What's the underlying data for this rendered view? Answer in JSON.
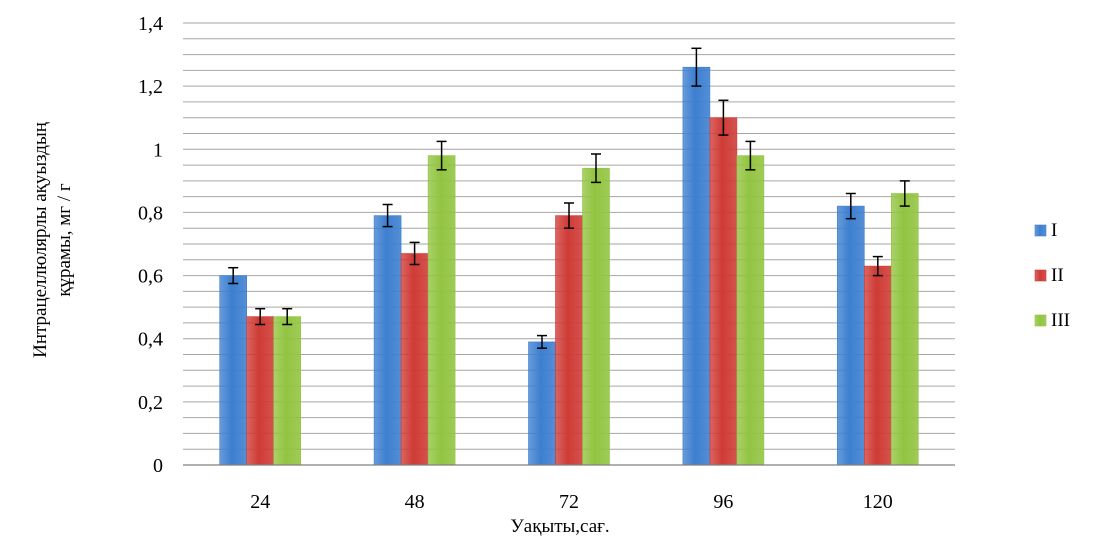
{
  "chart_data": {
    "type": "bar",
    "title": "",
    "xlabel": "Уақыты,сағ.",
    "ylabel_lines": [
      "Интрацеллюлярлы ақуыздың",
      "құрамы, мг / г"
    ],
    "ylim": [
      0,
      1.4
    ],
    "yticks": [
      "0",
      "0,2",
      "0,4",
      "0,6",
      "0,8",
      "1",
      "1,2",
      "1,4"
    ],
    "categories": [
      "24",
      "48",
      "72",
      "96",
      "120"
    ],
    "grid": true,
    "legend_position": "right",
    "series": [
      {
        "name": "I",
        "color": "#3d7fd0",
        "values": [
          0.6,
          0.79,
          0.39,
          1.26,
          0.82
        ],
        "errors": [
          0.025,
          0.035,
          0.02,
          0.06,
          0.04
        ]
      },
      {
        "name": "II",
        "color": "#cf3b36",
        "values": [
          0.47,
          0.67,
          0.79,
          1.1,
          0.63
        ],
        "errors": [
          0.025,
          0.035,
          0.04,
          0.055,
          0.03
        ]
      },
      {
        "name": "III",
        "color": "#92c441",
        "values": [
          0.47,
          0.98,
          0.94,
          0.98,
          0.86
        ],
        "errors": [
          0.025,
          0.045,
          0.045,
          0.045,
          0.04
        ]
      }
    ]
  }
}
